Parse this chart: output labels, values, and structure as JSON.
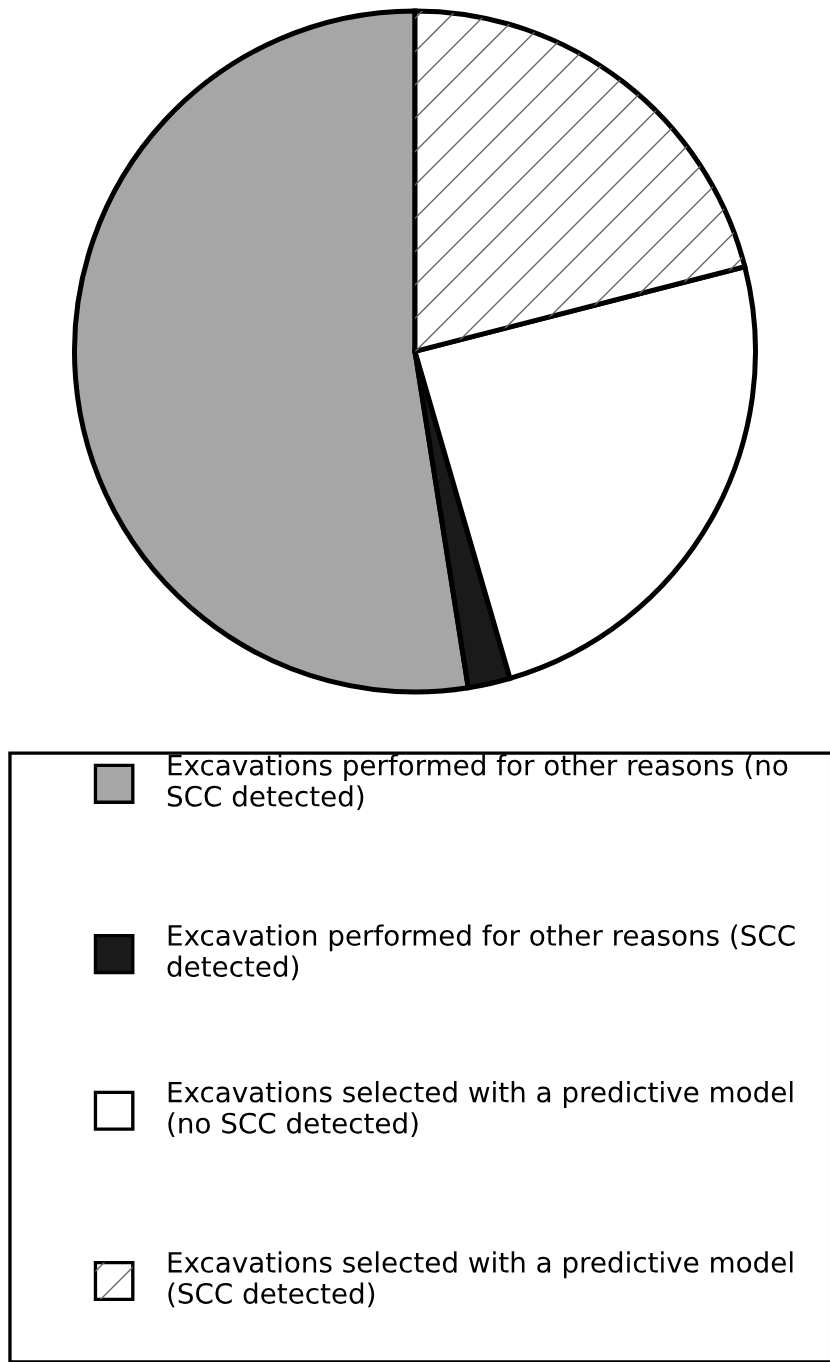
{
  "chart_data": {
    "type": "pie",
    "categories": [
      "Excavations performed for other reasons (no SCC detected)",
      "Excavation performed for other reasons (SCC detected)",
      "Excavations selected with a predictive model (no SCC detected)",
      "Excavations selected with a predictive model (SCC detected)"
    ],
    "values": [
      52.5,
      2,
      24.5,
      21
    ],
    "colors": [
      "#a6a6a6",
      "#1a1a1a",
      "#ffffff",
      "#ffffff"
    ],
    "legend": "bottom"
  }
}
